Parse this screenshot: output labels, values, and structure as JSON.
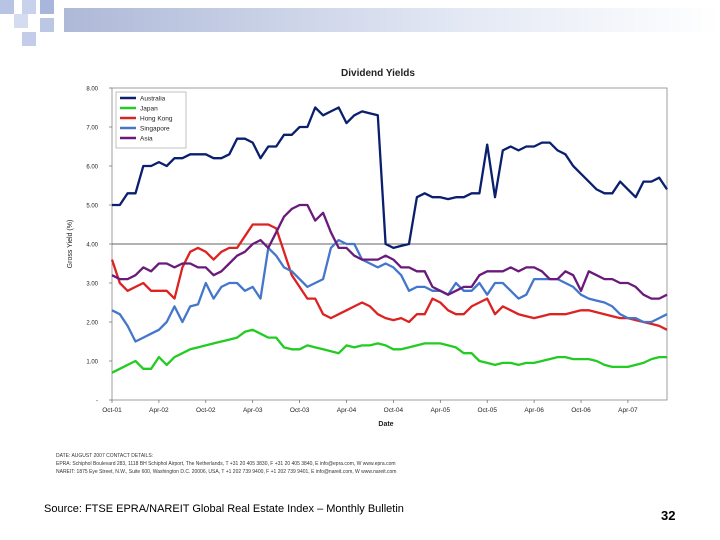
{
  "slide": {
    "source": "Source: FTSE EPRA/NAREIT Global Real Estate Index – Monthly Bulletin",
    "page_number": "32",
    "colors": {
      "band": "#bfc8e0",
      "square": "#b8c4e4"
    }
  },
  "contact": {
    "line1": "DATE: AUGUST 2007 CONTACT DETAILS:",
    "line2": "EPRA: Schiphol Boulevard 283, 1118 BH Schiphol Airport, The Netherlands, T +31 20 405 3830, F +31 20 405 3840, E info@epra.com, W www.epra.com",
    "line3": "NAREIT: 1875 Eye Street, N.W., Suite 600, Washington D.C. 20006, USA, T +1 202 739 9400, F +1 202 739 9401, E info@nareit.com, W www.nareit.com"
  },
  "chart_data": {
    "type": "line",
    "title": "Dividend Yields",
    "xlabel": "Date",
    "ylabel": "Gross Yield (%)",
    "ylim": [
      0,
      8
    ],
    "yticks": [
      0,
      1,
      2,
      3,
      4,
      5,
      6,
      7,
      8
    ],
    "ytick_labels": [
      "-",
      "1.00",
      "2.00",
      "3.00",
      "4.00",
      "5.00",
      "6.00",
      "7.00",
      "8.00"
    ],
    "xticks": [
      "Oct-01",
      "Apr-02",
      "Oct-02",
      "Apr-03",
      "Oct-03",
      "Apr-04",
      "Oct-04",
      "Apr-05",
      "Oct-05",
      "Apr-06",
      "Oct-06",
      "Apr-07"
    ],
    "tick_positions": [
      0,
      6,
      12,
      18,
      24,
      30,
      36,
      42,
      48,
      54,
      60,
      66
    ],
    "x_range": [
      0,
      71
    ],
    "gridlines": [
      4
    ],
    "legend_position": "top-left",
    "series": [
      {
        "name": "Australia",
        "color": "#0a1f6e",
        "values": [
          5.0,
          5.0,
          5.3,
          5.3,
          6.0,
          6.0,
          6.1,
          6.0,
          6.2,
          6.2,
          6.3,
          6.3,
          6.3,
          6.2,
          6.2,
          6.3,
          6.7,
          6.7,
          6.6,
          6.2,
          6.5,
          6.5,
          6.8,
          6.8,
          7.0,
          7.0,
          7.5,
          7.3,
          7.4,
          7.5,
          7.1,
          7.3,
          7.4,
          7.35,
          7.3,
          4.0,
          3.9,
          3.95,
          4.0,
          5.2,
          5.3,
          5.2,
          5.2,
          5.15,
          5.2,
          5.2,
          5.3,
          5.3,
          6.55,
          5.2,
          6.4,
          6.5,
          6.4,
          6.5,
          6.5,
          6.6,
          6.6,
          6.4,
          6.3,
          6.0,
          5.8,
          5.6,
          5.4,
          5.3,
          5.3,
          5.6,
          5.4,
          5.2,
          5.6,
          5.6,
          5.7,
          5.4
        ]
      },
      {
        "name": "Japan",
        "color": "#22cc22",
        "values": [
          0.7,
          0.8,
          0.9,
          1.0,
          0.8,
          0.8,
          1.1,
          0.9,
          1.1,
          1.2,
          1.3,
          1.35,
          1.4,
          1.45,
          1.5,
          1.55,
          1.6,
          1.75,
          1.8,
          1.7,
          1.6,
          1.6,
          1.35,
          1.3,
          1.3,
          1.4,
          1.35,
          1.3,
          1.25,
          1.2,
          1.4,
          1.35,
          1.4,
          1.4,
          1.45,
          1.4,
          1.3,
          1.3,
          1.35,
          1.4,
          1.45,
          1.45,
          1.45,
          1.4,
          1.35,
          1.2,
          1.2,
          1.0,
          0.95,
          0.9,
          0.95,
          0.95,
          0.9,
          0.95,
          0.95,
          1.0,
          1.05,
          1.1,
          1.1,
          1.05,
          1.05,
          1.05,
          1.0,
          0.9,
          0.85,
          0.85,
          0.85,
          0.9,
          0.95,
          1.05,
          1.1,
          1.1
        ]
      },
      {
        "name": "Hong Kong",
        "color": "#dd2222",
        "values": [
          3.6,
          3.0,
          2.8,
          2.9,
          3.0,
          2.8,
          2.8,
          2.8,
          2.6,
          3.4,
          3.8,
          3.9,
          3.8,
          3.6,
          3.8,
          3.9,
          3.9,
          4.2,
          4.5,
          4.5,
          4.5,
          4.4,
          3.8,
          3.2,
          2.9,
          2.6,
          2.6,
          2.2,
          2.1,
          2.2,
          2.3,
          2.4,
          2.5,
          2.4,
          2.2,
          2.1,
          2.05,
          2.1,
          2.0,
          2.2,
          2.2,
          2.6,
          2.5,
          2.3,
          2.2,
          2.2,
          2.4,
          2.5,
          2.6,
          2.2,
          2.4,
          2.3,
          2.2,
          2.15,
          2.1,
          2.15,
          2.2,
          2.2,
          2.2,
          2.25,
          2.3,
          2.3,
          2.25,
          2.2,
          2.15,
          2.1,
          2.1,
          2.05,
          2.0,
          1.95,
          1.9,
          1.8
        ]
      },
      {
        "name": "Singapore",
        "color": "#4477cc",
        "values": [
          2.3,
          2.2,
          1.9,
          1.5,
          1.6,
          1.7,
          1.8,
          2.0,
          2.4,
          2.0,
          2.4,
          2.45,
          3.0,
          2.6,
          2.9,
          3.0,
          3.0,
          2.8,
          2.9,
          2.6,
          3.9,
          3.7,
          3.4,
          3.3,
          3.1,
          2.9,
          3.0,
          3.1,
          3.9,
          4.1,
          4.0,
          4.0,
          3.6,
          3.5,
          3.4,
          3.5,
          3.4,
          3.2,
          2.8,
          2.9,
          2.9,
          2.8,
          2.8,
          2.7,
          3.0,
          2.8,
          2.8,
          3.0,
          2.7,
          3.0,
          3.0,
          2.8,
          2.6,
          2.7,
          3.1,
          3.1,
          3.1,
          3.1,
          3.0,
          2.9,
          2.7,
          2.6,
          2.55,
          2.5,
          2.4,
          2.2,
          2.1,
          2.1,
          2.0,
          2.0,
          2.1,
          2.2
        ]
      },
      {
        "name": "Asia",
        "color": "#6a1a7a",
        "values": [
          3.2,
          3.1,
          3.1,
          3.2,
          3.4,
          3.3,
          3.5,
          3.5,
          3.4,
          3.5,
          3.5,
          3.4,
          3.4,
          3.2,
          3.3,
          3.5,
          3.7,
          3.8,
          4.0,
          4.1,
          3.9,
          4.3,
          4.7,
          4.9,
          5.0,
          5.0,
          4.6,
          4.8,
          4.3,
          3.9,
          3.9,
          3.7,
          3.6,
          3.6,
          3.6,
          3.7,
          3.6,
          3.4,
          3.4,
          3.3,
          3.3,
          2.9,
          2.8,
          2.7,
          2.8,
          2.9,
          2.9,
          3.2,
          3.3,
          3.3,
          3.3,
          3.4,
          3.3,
          3.4,
          3.4,
          3.3,
          3.1,
          3.1,
          3.3,
          3.2,
          2.8,
          3.3,
          3.2,
          3.1,
          3.1,
          3.0,
          3.0,
          2.9,
          2.7,
          2.6,
          2.6,
          2.7
        ]
      }
    ]
  }
}
